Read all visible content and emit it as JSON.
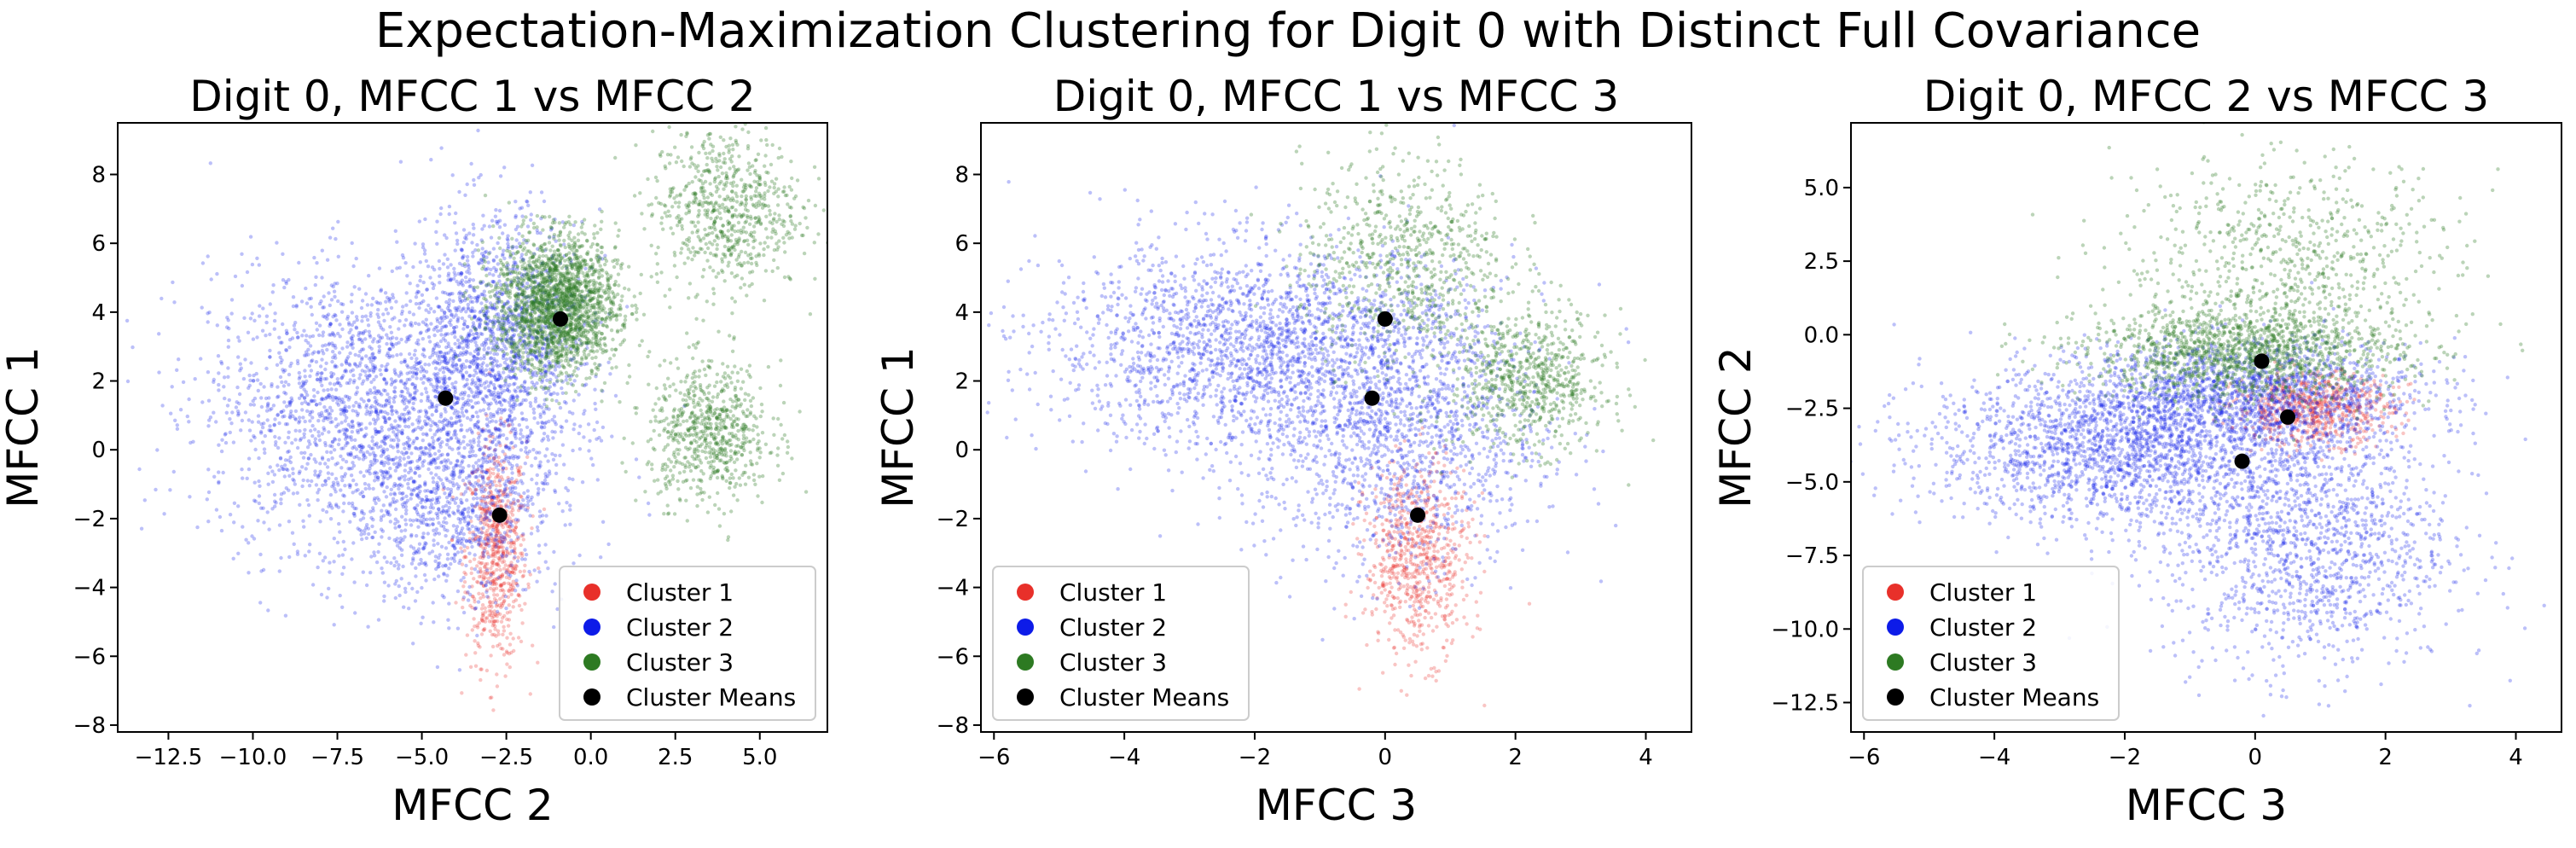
{
  "figure": {
    "suptitle": "Expectation-Maximization Clustering for Digit 0 with Distinct Full Covariance"
  },
  "chart_data": [
    {
      "type": "scatter",
      "title": "Digit 0, MFCC 1 vs MFCC 2",
      "xlabel": "MFCC 2",
      "ylabel": "MFCC 1",
      "xlim": [
        -14.0,
        7.0
      ],
      "ylim": [
        -8.2,
        9.5
      ],
      "xticks": [
        -12.5,
        -10.0,
        -7.5,
        -5.0,
        -2.5,
        0.0,
        2.5,
        5.0
      ],
      "xtick_labels": [
        "−12.5",
        "−10.0",
        "−7.5",
        "−5.0",
        "−2.5",
        "0.0",
        "2.5",
        "5.0"
      ],
      "yticks": [
        -8,
        -6,
        -4,
        -2,
        0,
        2,
        4,
        6,
        8
      ],
      "ytick_labels": [
        "−8",
        "−6",
        "−4",
        "−2",
        "0",
        "2",
        "4",
        "6",
        "8"
      ],
      "legend": {
        "position": "lower-right",
        "entries": [
          "Cluster 1",
          "Cluster 2",
          "Cluster 3",
          "Cluster Means"
        ]
      },
      "clusters": [
        {
          "name": "Cluster 1",
          "color": "#e8302a",
          "blobs": [
            {
              "center": [
                -2.8,
                -3.0
              ],
              "spread": [
                0.45,
                1.6
              ],
              "weight": 1
            }
          ]
        },
        {
          "name": "Cluster 2",
          "color": "#0d1be8",
          "blobs": [
            {
              "center": [
                -6.5,
                1.2
              ],
              "spread": [
                2.4,
                2.0
              ],
              "weight": 3
            },
            {
              "center": [
                -2.8,
                3.0
              ],
              "spread": [
                1.3,
                1.9
              ],
              "weight": 2
            },
            {
              "center": [
                -4.0,
                -2.0
              ],
              "spread": [
                1.6,
                1.3
              ],
              "weight": 1
            }
          ]
        },
        {
          "name": "Cluster 3",
          "color": "#2d7a22",
          "blobs": [
            {
              "center": [
                -1.0,
                4.2
              ],
              "spread": [
                0.9,
                1.0
              ],
              "weight": 3
            },
            {
              "center": [
                4.0,
                7.0
              ],
              "spread": [
                1.1,
                1.2
              ],
              "weight": 1
            },
            {
              "center": [
                3.5,
                0.5
              ],
              "spread": [
                0.9,
                1.0
              ],
              "weight": 1
            }
          ]
        }
      ],
      "means": [
        {
          "name": "Cluster 1",
          "x": -2.7,
          "y": -1.9
        },
        {
          "name": "Cluster 2",
          "x": -4.3,
          "y": 1.5
        },
        {
          "name": "Cluster 3",
          "x": -0.9,
          "y": 3.8
        }
      ]
    },
    {
      "type": "scatter",
      "title": "Digit 0, MFCC 1 vs MFCC 3",
      "xlabel": "MFCC 3",
      "ylabel": "MFCC 1",
      "xlim": [
        -6.2,
        4.7
      ],
      "ylim": [
        -8.2,
        9.5
      ],
      "xticks": [
        -6,
        -4,
        -2,
        0,
        2,
        4
      ],
      "xtick_labels": [
        "−6",
        "−4",
        "−2",
        "0",
        "2",
        "4"
      ],
      "yticks": [
        -8,
        -6,
        -4,
        -2,
        0,
        2,
        4,
        6,
        8
      ],
      "ytick_labels": [
        "−8",
        "−6",
        "−4",
        "−2",
        "0",
        "2",
        "4",
        "6",
        "8"
      ],
      "legend": {
        "position": "lower-left",
        "entries": [
          "Cluster 1",
          "Cluster 2",
          "Cluster 3",
          "Cluster Means"
        ]
      },
      "clusters": [
        {
          "name": "Cluster 1",
          "color": "#e8302a",
          "blobs": [
            {
              "center": [
                0.5,
                -3.2
              ],
              "spread": [
                0.4,
                1.4
              ],
              "weight": 1
            }
          ]
        },
        {
          "name": "Cluster 2",
          "color": "#0d1be8",
          "blobs": [
            {
              "center": [
                -2.0,
                3.0
              ],
              "spread": [
                1.6,
                1.5
              ],
              "weight": 3
            },
            {
              "center": [
                0.2,
                0.5
              ],
              "spread": [
                1.1,
                2.0
              ],
              "weight": 2
            }
          ]
        },
        {
          "name": "Cluster 3",
          "color": "#2d7a22",
          "blobs": [
            {
              "center": [
                0.3,
                5.5
              ],
              "spread": [
                0.8,
                1.5
              ],
              "weight": 1
            },
            {
              "center": [
                2.2,
                2.0
              ],
              "spread": [
                0.6,
                1.0
              ],
              "weight": 1
            }
          ]
        }
      ],
      "means": [
        {
          "name": "Cluster 1",
          "x": 0.5,
          "y": -1.9
        },
        {
          "name": "Cluster 2",
          "x": -0.2,
          "y": 1.5
        },
        {
          "name": "Cluster 3",
          "x": 0.0,
          "y": 3.8
        }
      ]
    },
    {
      "type": "scatter",
      "title": "Digit 0, MFCC 2 vs MFCC 3",
      "xlabel": "MFCC 3",
      "ylabel": "MFCC 2",
      "xlim": [
        -6.2,
        4.7
      ],
      "ylim": [
        -13.5,
        7.2
      ],
      "xticks": [
        -6,
        -4,
        -2,
        0,
        2,
        4
      ],
      "xtick_labels": [
        "−6",
        "−4",
        "−2",
        "0",
        "2",
        "4"
      ],
      "yticks": [
        -12.5,
        -10.0,
        -7.5,
        -5.0,
        -2.5,
        0.0,
        2.5,
        5.0
      ],
      "ytick_labels": [
        "−12.5",
        "−10.0",
        "−7.5",
        "−5.0",
        "−2.5",
        "0.0",
        "2.5",
        "5.0"
      ],
      "legend": {
        "position": "lower-left",
        "entries": [
          "Cluster 1",
          "Cluster 2",
          "Cluster 3",
          "Cluster Means"
        ]
      },
      "clusters": [
        {
          "name": "Cluster 1",
          "color": "#e8302a",
          "blobs": [
            {
              "center": [
                0.9,
                -2.5
              ],
              "spread": [
                0.6,
                0.6
              ],
              "weight": 1
            }
          ]
        },
        {
          "name": "Cluster 2",
          "color": "#0d1be8",
          "blobs": [
            {
              "center": [
                -2.0,
                -3.8
              ],
              "spread": [
                1.5,
                1.3
              ],
              "weight": 3
            },
            {
              "center": [
                0.8,
                -7.0
              ],
              "spread": [
                1.1,
                2.2
              ],
              "weight": 2
            },
            {
              "center": [
                0.0,
                -2.0
              ],
              "spread": [
                1.3,
                0.9
              ],
              "weight": 2
            }
          ]
        },
        {
          "name": "Cluster 3",
          "color": "#2d7a22",
          "blobs": [
            {
              "center": [
                0.5,
                2.5
              ],
              "spread": [
                1.3,
                1.8
              ],
              "weight": 1
            },
            {
              "center": [
                -0.2,
                -0.6
              ],
              "spread": [
                1.2,
                0.8
              ],
              "weight": 2
            }
          ]
        }
      ],
      "means": [
        {
          "name": "Cluster 1",
          "x": 0.5,
          "y": -2.8
        },
        {
          "name": "Cluster 2",
          "x": -0.2,
          "y": -4.3
        },
        {
          "name": "Cluster 3",
          "x": 0.1,
          "y": -0.9
        }
      ]
    }
  ]
}
